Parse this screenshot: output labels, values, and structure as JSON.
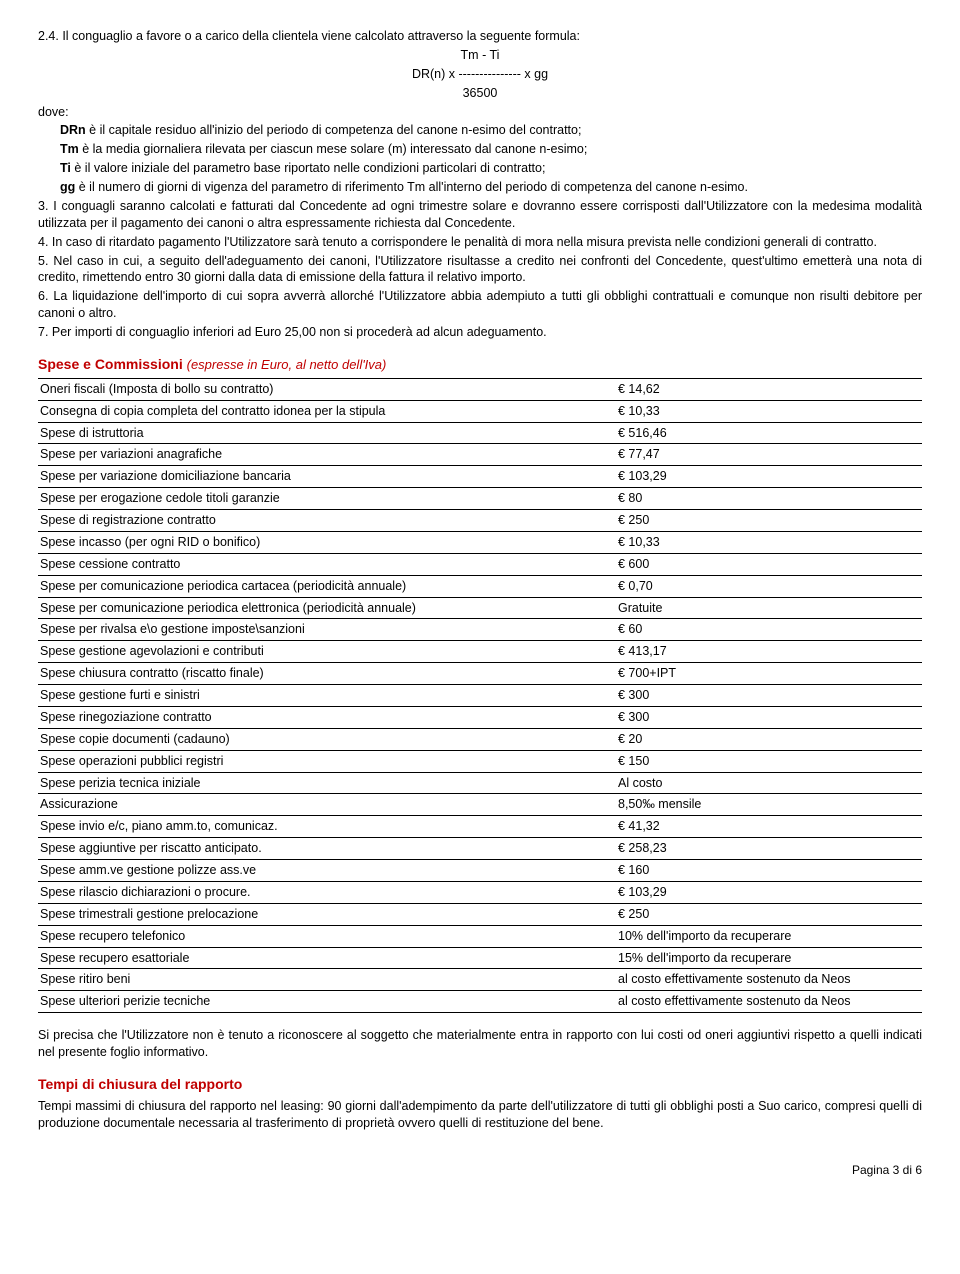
{
  "intro": {
    "p24": "2.4. Il conguaglio a favore o a carico della clientela viene calcolato attraverso la seguente formula:",
    "f1": "Tm - Ti",
    "f2": "DR(n) x --------------- x gg",
    "f3": "36500",
    "dove": "dove:",
    "drn_lbl": "DRn",
    "drn_txt": " è il capitale residuo all'inizio del periodo di competenza del canone n-esimo del contratto;",
    "tm_lbl": "Tm",
    "tm_txt": " è la media giornaliera rilevata per ciascun mese solare (m) interessato dal canone n-esimo;",
    "ti_lbl": "Ti",
    "ti_txt": " è il valore iniziale del parametro base riportato nelle condizioni particolari di contratto;",
    "gg_lbl": "gg",
    "gg_txt": " è il numero di giorni di vigenza del parametro di riferimento Tm all'interno del periodo di competenza del canone n-esimo.",
    "p3": "3. I conguagli saranno calcolati e fatturati dal Concedente ad ogni trimestre solare e dovranno essere corrisposti dall'Utilizzatore con la medesima modalità utilizzata per il pagamento dei canoni o altra espressamente richiesta dal Concedente.",
    "p4": "4. In caso di ritardato pagamento l'Utilizzatore sarà tenuto a corrispondere le penalità di mora nella misura prevista nelle condizioni generali di contratto.",
    "p5": "5. Nel caso in cui, a seguito dell'adeguamento dei canoni, l'Utilizzatore risultasse a credito nei confronti del Concedente, quest'ultimo emetterà una nota di credito, rimettendo entro 30 giorni dalla data di emissione della fattura il relativo importo.",
    "p6": "6. La liquidazione dell'importo di cui sopra avverrà allorché l'Utilizzatore abbia adempiuto a tutti gli obblighi contrattuali e comunque non risulti debitore per canoni o altro.",
    "p7": "7. Per importi di conguaglio inferiori ad Euro 25,00 non si procederà ad alcun adeguamento."
  },
  "spese": {
    "title": "Spese e Commissioni ",
    "subtitle": "(espresse in Euro, al netto dell'Iva)",
    "rows": [
      [
        "Oneri fiscali (Imposta di bollo su contratto)",
        "€ 14,62"
      ],
      [
        "Consegna di copia completa del contratto idonea per la stipula",
        "€ 10,33"
      ],
      [
        "Spese di istruttoria",
        "€ 516,46"
      ],
      [
        "Spese per variazioni anagrafiche",
        "€ 77,47"
      ],
      [
        "Spese per variazione domiciliazione bancaria",
        "€ 103,29"
      ],
      [
        "Spese per erogazione cedole titoli garanzie",
        "€ 80"
      ],
      [
        "Spese di registrazione contratto",
        "€ 250"
      ],
      [
        "Spese incasso (per ogni RID o bonifico)",
        "€ 10,33"
      ],
      [
        "Spese cessione contratto",
        "€ 600"
      ],
      [
        "Spese per comunicazione periodica cartacea (periodicità annuale)",
        "€ 0,70"
      ],
      [
        "Spese per comunicazione periodica elettronica (periodicità annuale)",
        "Gratuite"
      ],
      [
        "Spese per rivalsa e\\o gestione imposte\\sanzioni",
        "€ 60"
      ],
      [
        "Spese gestione agevolazioni e contributi",
        "€ 413,17"
      ],
      [
        "Spese chiusura contratto (riscatto finale)",
        "€ 700+IPT"
      ],
      [
        "Spese gestione furti e sinistri",
        "€ 300"
      ],
      [
        "Spese rinegoziazione contratto",
        "€ 300"
      ],
      [
        "Spese copie documenti (cadauno)",
        "€ 20"
      ],
      [
        "Spese operazioni pubblici registri",
        "€ 150"
      ],
      [
        "Spese perizia tecnica iniziale",
        "Al costo"
      ],
      [
        "Assicurazione",
        "8,50‰  mensile"
      ],
      [
        "Spese invio e/c, piano amm.to, comunicaz.",
        "€ 41,32"
      ],
      [
        "Spese aggiuntive per riscatto anticipato.",
        "€ 258,23"
      ],
      [
        "Spese amm.ve gestione polizze ass.ve",
        "€ 160"
      ],
      [
        "Spese rilascio dichiarazioni o procure.",
        "€ 103,29"
      ],
      [
        "Spese trimestrali gestione prelocazione",
        "€ 250"
      ],
      [
        "Spese  recupero telefonico",
        "10% dell'importo da recuperare"
      ],
      [
        "Spese recupero esattoriale",
        "15% dell'importo da recuperare"
      ],
      [
        "Spese ritiro beni",
        "al costo effettivamente sostenuto da Neos"
      ],
      [
        "Spese ulteriori perizie tecniche",
        "al costo effettivamente sostenuto da Neos"
      ]
    ]
  },
  "nota": "Si precisa che l'Utilizzatore non è tenuto a riconoscere al soggetto che materialmente entra in rapporto con lui costi od oneri aggiuntivi rispetto a quelli indicati nel presente foglio informativo.",
  "tempi": {
    "title": "Tempi di chiusura del rapporto",
    "text": "Tempi massimi di chiusura del rapporto nel leasing: 90 giorni dall'adempimento da parte dell'utilizzatore di tutti gli obblighi posti a Suo carico, compresi quelli di produzione documentale necessaria al trasferimento di proprietà ovvero quelli di restituzione del bene."
  },
  "footer": "Pagina 3 di 6"
}
